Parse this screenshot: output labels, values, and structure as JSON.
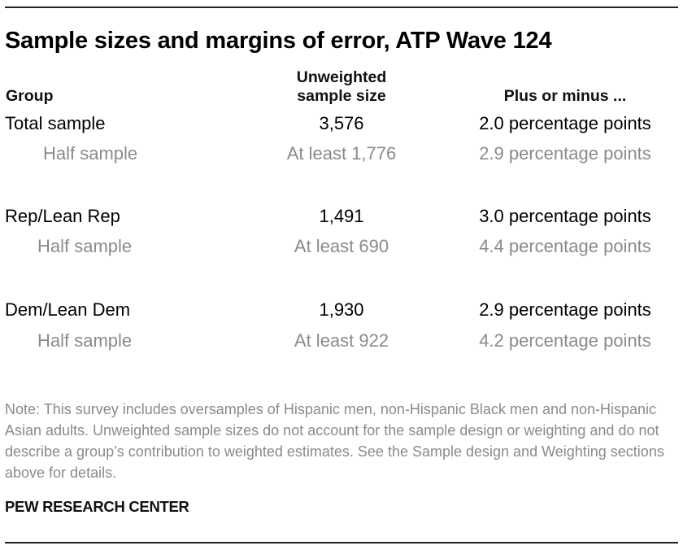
{
  "title": "Sample sizes and margins of error, ATP Wave 124",
  "headers": {
    "group": "Group",
    "sample_size": "Unweighted sample size",
    "moe": "Plus or minus ..."
  },
  "rows": [
    {
      "group": "Total sample",
      "size": "3,576",
      "moe": "2.0 percentage points"
    },
    {
      "group": "Half sample",
      "size": "At least 1,776",
      "moe": "2.9 percentage points"
    },
    {
      "group": "Rep/Lean Rep",
      "size": "1,491",
      "moe": "3.0 percentage points"
    },
    {
      "group": "Half sample",
      "size": "At least 690",
      "moe": "4.4 percentage points"
    },
    {
      "group": "Dem/Lean Dem",
      "size": "1,930",
      "moe": "2.9 percentage points"
    },
    {
      "group": "Half sample",
      "size": "At least 922",
      "moe": "4.2 percentage points"
    }
  ],
  "note": "Note: This survey includes oversamples of Hispanic men, non-Hispanic Black men and non-Hispanic Asian adults. Unweighted sample sizes do not account for the sample design or weighting and do not describe a group’s contribution to weighted estimates. See the Sample design and Weighting sections above for details.",
  "source": "PEW RESEARCH CENTER"
}
